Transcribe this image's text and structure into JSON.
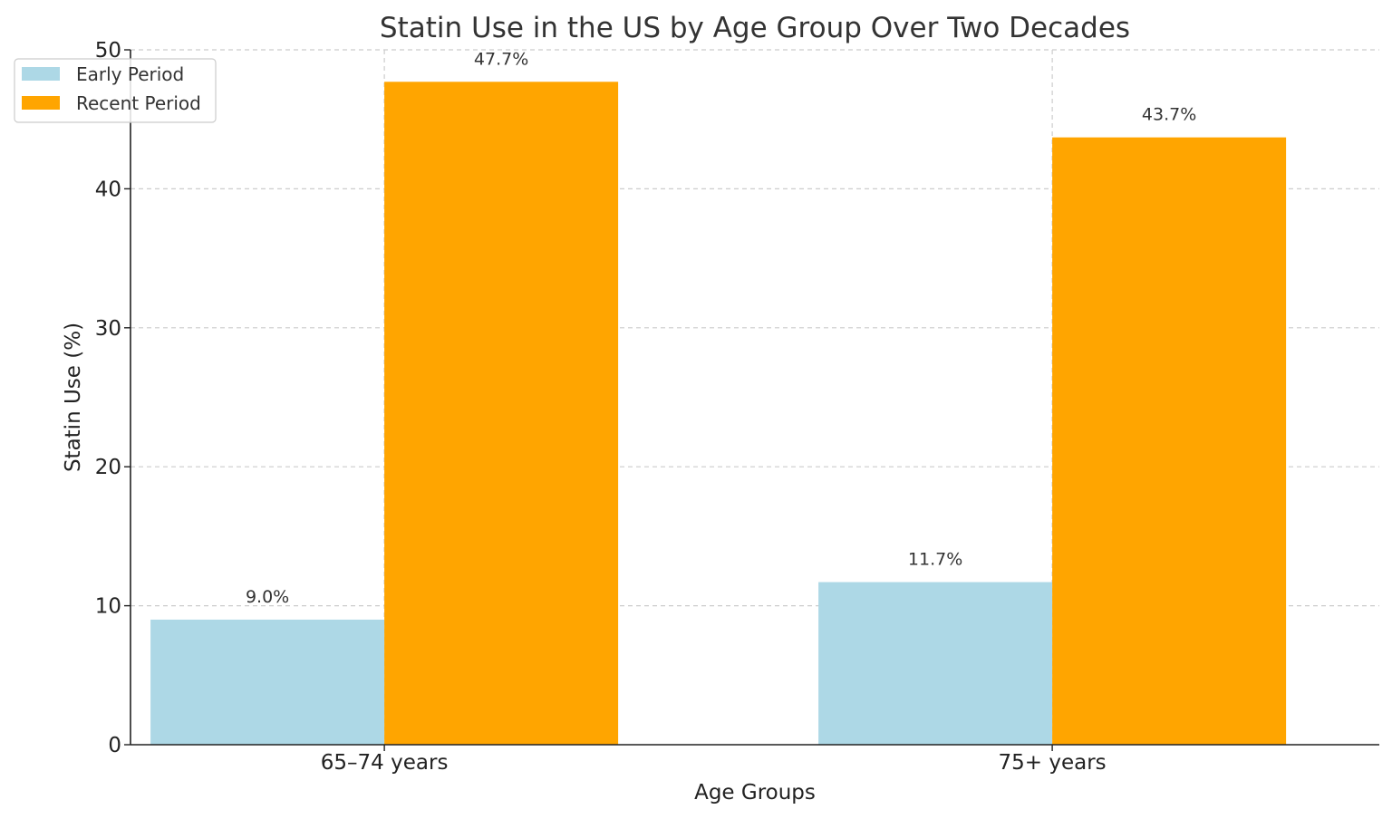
{
  "chart_data": {
    "type": "bar",
    "title": "Statin Use in the US by Age Group Over Two Decades",
    "xlabel": "Age Groups",
    "ylabel": "Statin Use (%)",
    "categories": [
      "65–74 years",
      "75+ years"
    ],
    "series": [
      {
        "name": "Early Period",
        "values": [
          9.0,
          11.7
        ],
        "color": "#add8e6",
        "data_labels": [
          "9.0%",
          "11.7%"
        ]
      },
      {
        "name": "Recent Period",
        "values": [
          47.7,
          43.7
        ],
        "color": "#ffa500",
        "data_labels": [
          "47.7%",
          "43.7%"
        ]
      }
    ],
    "ylim": [
      0,
      50
    ],
    "yticks": [
      0,
      10,
      20,
      30,
      40,
      50
    ],
    "ytick_labels": [
      "0",
      "10",
      "20",
      "30",
      "40",
      "50"
    ],
    "grid": true,
    "legend_position": "top-left"
  }
}
